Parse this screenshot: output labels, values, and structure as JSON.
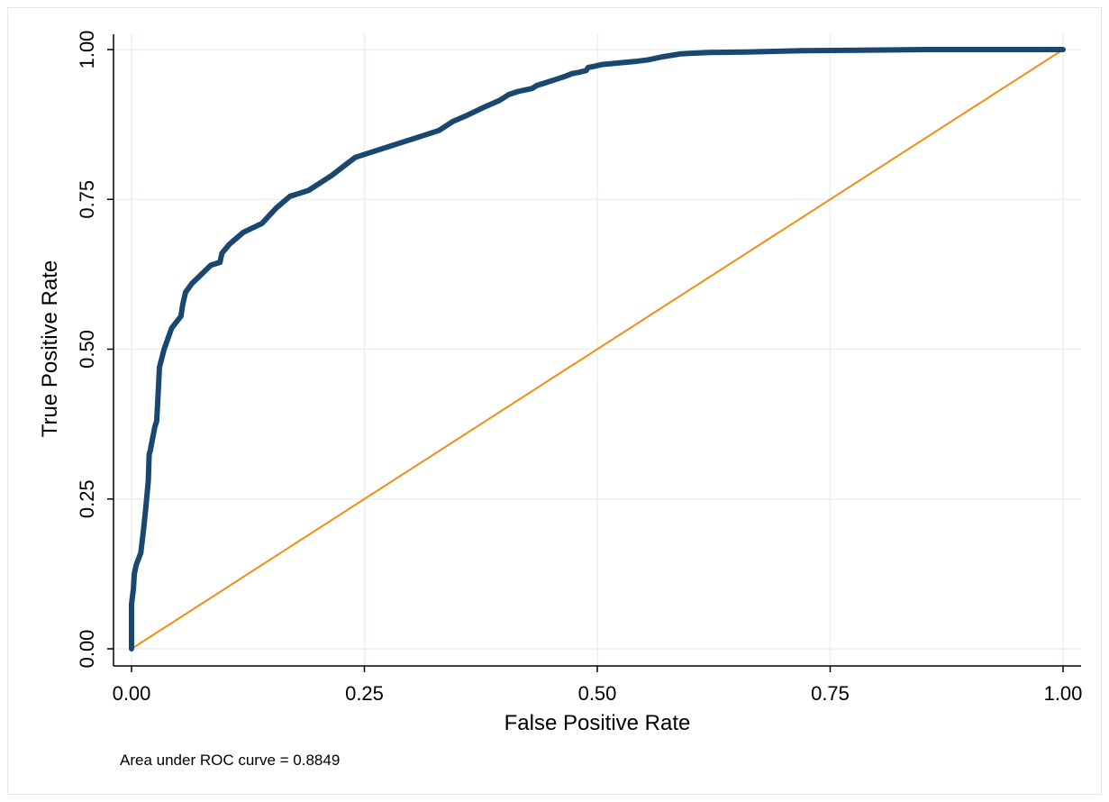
{
  "chart_data": {
    "type": "line",
    "title": "",
    "xlabel": "False Positive Rate",
    "ylabel": "True Positive Rate",
    "xlim": [
      0,
      1
    ],
    "ylim": [
      0,
      1
    ],
    "grid": true,
    "x_ticks": [
      "0.00",
      "0.25",
      "0.50",
      "0.75",
      "1.00"
    ],
    "y_ticks": [
      "0.00",
      "0.25",
      "0.50",
      "0.75",
      "1.00"
    ],
    "note": "Area under ROC curve = 0.8849",
    "colors": {
      "roc": "#1a476f",
      "reference": "#f28e13",
      "grid": "#e8f0f0"
    },
    "series": [
      {
        "role": "roc",
        "x": [
          0,
          0,
          0.002,
          0.003,
          0.005,
          0.01,
          0.013,
          0.015,
          0.018,
          0.019,
          0.02,
          0.025,
          0.027,
          0.028,
          0.03,
          0.035,
          0.043,
          0.053,
          0.055,
          0.058,
          0.065,
          0.075,
          0.085,
          0.095,
          0.097,
          0.105,
          0.12,
          0.14,
          0.155,
          0.17,
          0.19,
          0.215,
          0.24,
          0.27,
          0.3,
          0.33,
          0.345,
          0.36,
          0.38,
          0.395,
          0.405,
          0.415,
          0.43,
          0.435,
          0.445,
          0.455,
          0.465,
          0.473,
          0.48,
          0.488,
          0.49,
          0.497,
          0.505,
          0.525,
          0.54,
          0.555,
          0.57,
          0.59,
          0.62,
          0.66,
          0.72,
          0.78,
          0.85,
          1
        ],
        "y": [
          0,
          0.075,
          0.1,
          0.125,
          0.14,
          0.16,
          0.2,
          0.23,
          0.28,
          0.325,
          0.33,
          0.37,
          0.38,
          0.41,
          0.47,
          0.5,
          0.535,
          0.555,
          0.575,
          0.595,
          0.61,
          0.625,
          0.64,
          0.645,
          0.66,
          0.675,
          0.695,
          0.71,
          0.735,
          0.755,
          0.765,
          0.79,
          0.82,
          0.835,
          0.85,
          0.865,
          0.88,
          0.89,
          0.905,
          0.915,
          0.925,
          0.93,
          0.935,
          0.94,
          0.945,
          0.95,
          0.955,
          0.96,
          0.962,
          0.965,
          0.97,
          0.972,
          0.975,
          0.978,
          0.98,
          0.983,
          0.988,
          0.993,
          0.995,
          0.996,
          0.998,
          0.999,
          1,
          1
        ]
      },
      {
        "role": "reference",
        "x": [
          0,
          1
        ],
        "y": [
          0,
          1
        ]
      }
    ]
  }
}
